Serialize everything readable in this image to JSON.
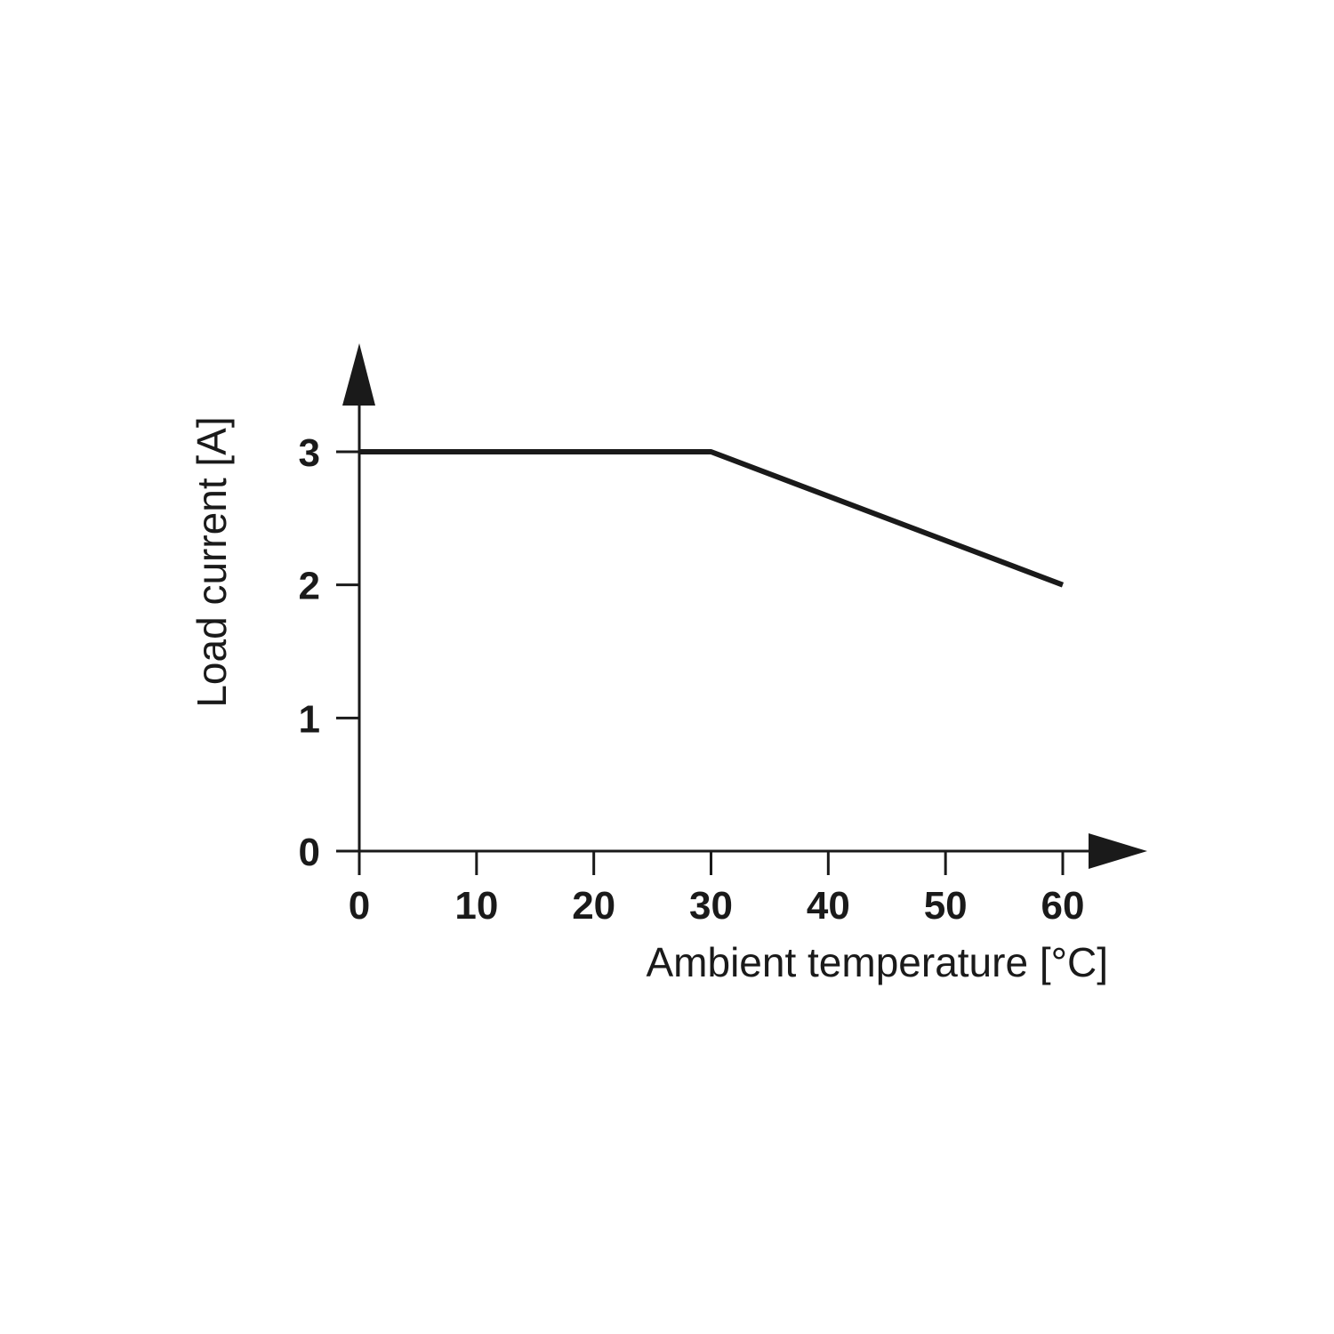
{
  "chart_data": {
    "type": "line",
    "title": "",
    "xlabel": "Ambient temperature [°C]",
    "ylabel": "Load current [A]",
    "xlim": [
      0,
      60
    ],
    "ylim": [
      0,
      3
    ],
    "xticks": [
      0,
      10,
      20,
      30,
      40,
      50,
      60
    ],
    "yticks": [
      0,
      1,
      2,
      3
    ],
    "grid": false,
    "legend": "none",
    "series": [
      {
        "x": [
          0,
          30,
          60
        ],
        "y": [
          3,
          3,
          2
        ],
        "color": "#1a1a1a"
      }
    ]
  }
}
